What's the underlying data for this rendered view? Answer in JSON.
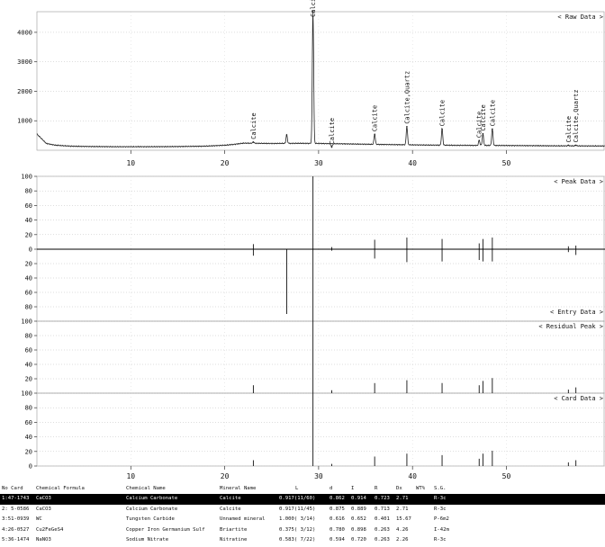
{
  "chart_data": {
    "type": "line",
    "x_ticks": [
      10,
      20,
      30,
      40,
      50
    ],
    "xlim": [
      0,
      60.5
    ],
    "panels": [
      {
        "id": "raw",
        "title": "< Raw Data >",
        "ylim": [
          0,
          4700
        ],
        "yticks": [
          1000,
          2000,
          3000,
          4000
        ],
        "background": [
          [
            0,
            550
          ],
          [
            1,
            230
          ],
          [
            2,
            170
          ],
          [
            3,
            150
          ],
          [
            4,
            135
          ],
          [
            6,
            125
          ],
          [
            8,
            120
          ],
          [
            10,
            120
          ],
          [
            12,
            120
          ],
          [
            15,
            125
          ],
          [
            18,
            140
          ],
          [
            20,
            170
          ],
          [
            21,
            200
          ],
          [
            22,
            240
          ],
          [
            25,
            230
          ],
          [
            28,
            235
          ],
          [
            30,
            230
          ],
          [
            34,
            210
          ],
          [
            38,
            190
          ],
          [
            42,
            175
          ],
          [
            46,
            165
          ],
          [
            50,
            160
          ],
          [
            55,
            150
          ],
          [
            60,
            145
          ]
        ],
        "peaks": [
          {
            "x": 23.05,
            "y": 280,
            "label": "Calcite"
          },
          {
            "x": 26.6,
            "y": 520,
            "label": ""
          },
          {
            "x": 29.4,
            "y": 4700,
            "label": "Calcite"
          },
          {
            "x": 31.4,
            "y": 110,
            "label": "Calcite"
          },
          {
            "x": 35.97,
            "y": 540,
            "label": "Calcite"
          },
          {
            "x": 39.4,
            "y": 800,
            "label": "Calcite,Quartz"
          },
          {
            "x": 43.15,
            "y": 720,
            "label": "Calcite"
          },
          {
            "x": 47.1,
            "y": 330,
            "label": "Calcite"
          },
          {
            "x": 47.5,
            "y": 560,
            "label": "Calcite"
          },
          {
            "x": 48.5,
            "y": 720,
            "label": "Calcite"
          },
          {
            "x": 56.6,
            "y": 170,
            "label": "Calcite"
          },
          {
            "x": 57.4,
            "y": 170,
            "label": "Calcite,Quartz"
          }
        ]
      },
      {
        "id": "peak",
        "title": "< Peak Data >",
        "ylim": [
          0,
          100
        ],
        "yticks": [
          0,
          20,
          40,
          60,
          80,
          100
        ],
        "sticks": [
          [
            23.05,
            7
          ],
          [
            29.4,
            100
          ],
          [
            31.4,
            3
          ],
          [
            35.97,
            13
          ],
          [
            39.4,
            16
          ],
          [
            43.15,
            14
          ],
          [
            47.1,
            8
          ],
          [
            47.5,
            14
          ],
          [
            48.5,
            16
          ],
          [
            56.6,
            4
          ],
          [
            57.4,
            5
          ]
        ]
      },
      {
        "id": "entry",
        "title": "< Entry Data >",
        "ylim": [
          0,
          100
        ],
        "yticks": [
          20,
          40,
          60,
          80
        ],
        "sticks": [
          [
            23.05,
            9
          ],
          [
            26.6,
            90
          ],
          [
            29.4,
            100
          ],
          [
            31.4,
            2
          ],
          [
            35.97,
            13
          ],
          [
            39.4,
            18
          ],
          [
            43.15,
            17
          ],
          [
            47.1,
            15
          ],
          [
            47.5,
            17
          ],
          [
            48.5,
            17
          ],
          [
            56.6,
            4
          ],
          [
            57.4,
            8
          ]
        ]
      },
      {
        "id": "residual",
        "title": "< Residual Peak >",
        "ylim": [
          0,
          100
        ],
        "yticks": [
          20,
          40,
          60,
          80,
          100
        ],
        "sticks": [
          [
            23.05,
            11
          ],
          [
            29.4,
            100
          ],
          [
            31.4,
            4
          ],
          [
            35.97,
            14
          ],
          [
            39.4,
            18
          ],
          [
            43.15,
            14
          ],
          [
            47.1,
            11
          ],
          [
            47.5,
            17
          ],
          [
            48.5,
            21
          ],
          [
            56.6,
            5
          ],
          [
            57.4,
            8
          ]
        ]
      },
      {
        "id": "card",
        "title": "< Card Data >",
        "ylim": [
          0,
          100
        ],
        "yticks": [
          0,
          20,
          40,
          60,
          80,
          100
        ],
        "sticks": [
          [
            23.05,
            8
          ],
          [
            29.4,
            100
          ],
          [
            31.4,
            3
          ],
          [
            35.97,
            13
          ],
          [
            39.4,
            17
          ],
          [
            43.15,
            15
          ],
          [
            47.1,
            10
          ],
          [
            47.5,
            17
          ],
          [
            48.5,
            21
          ],
          [
            56.6,
            5
          ],
          [
            57.4,
            8
          ]
        ]
      }
    ]
  },
  "table": {
    "headers": [
      "No Card",
      "Chemical Formula",
      "Chemical Name",
      "Mineral Name",
      "L",
      "d",
      "I",
      "R",
      "Dx",
      "WT%",
      "S.G."
    ],
    "rows": [
      {
        "no": "1:47-1743",
        "formula": "CaCO3",
        "name": "Calcium Carbonate",
        "mineral": "Calcite",
        "l": "0.917(11/60)",
        "d": "0.862",
        "i": "0.914",
        "r": "0.723",
        "dx": "2.71",
        "wt": "",
        "sg": "R-3c",
        "selected": true
      },
      {
        "no": "2: 5-0586",
        "formula": "CaCO3",
        "name": "Calcium Carbonate",
        "mineral": "Calcite",
        "l": "0.917(11/45)",
        "d": "0.875",
        "i": "0.889",
        "r": "0.713",
        "dx": "2.71",
        "wt": "",
        "sg": "R-3c",
        "selected": false
      },
      {
        "no": "3:51-0939",
        "formula": "WC",
        "name": "Tungsten Carbide",
        "mineral": "Unnamed mineral",
        "l": "1.000( 3/14)",
        "d": "0.616",
        "i": "0.652",
        "r": "0.401",
        "dx": "15.67",
        "wt": "",
        "sg": "P-6m2",
        "selected": false
      },
      {
        "no": "4:26-0527",
        "formula": "Cu2FeGeS4",
        "name": "Copper Iron Germanium Sulf",
        "mineral": "Briartite",
        "l": "0.375( 3/12)",
        "d": "0.780",
        "i": "0.898",
        "r": "0.263",
        "dx": "4.26",
        "wt": "",
        "sg": "I-42m",
        "selected": false
      },
      {
        "no": "5:36-1474",
        "formula": "NaNO3",
        "name": "Sodium Nitrate",
        "mineral": "Nitratine",
        "l": "0.583( 7/22)",
        "d": "0.594",
        "i": "0.720",
        "r": "0.263",
        "dx": "2.26",
        "wt": "",
        "sg": "R-3c",
        "selected": false
      }
    ]
  }
}
